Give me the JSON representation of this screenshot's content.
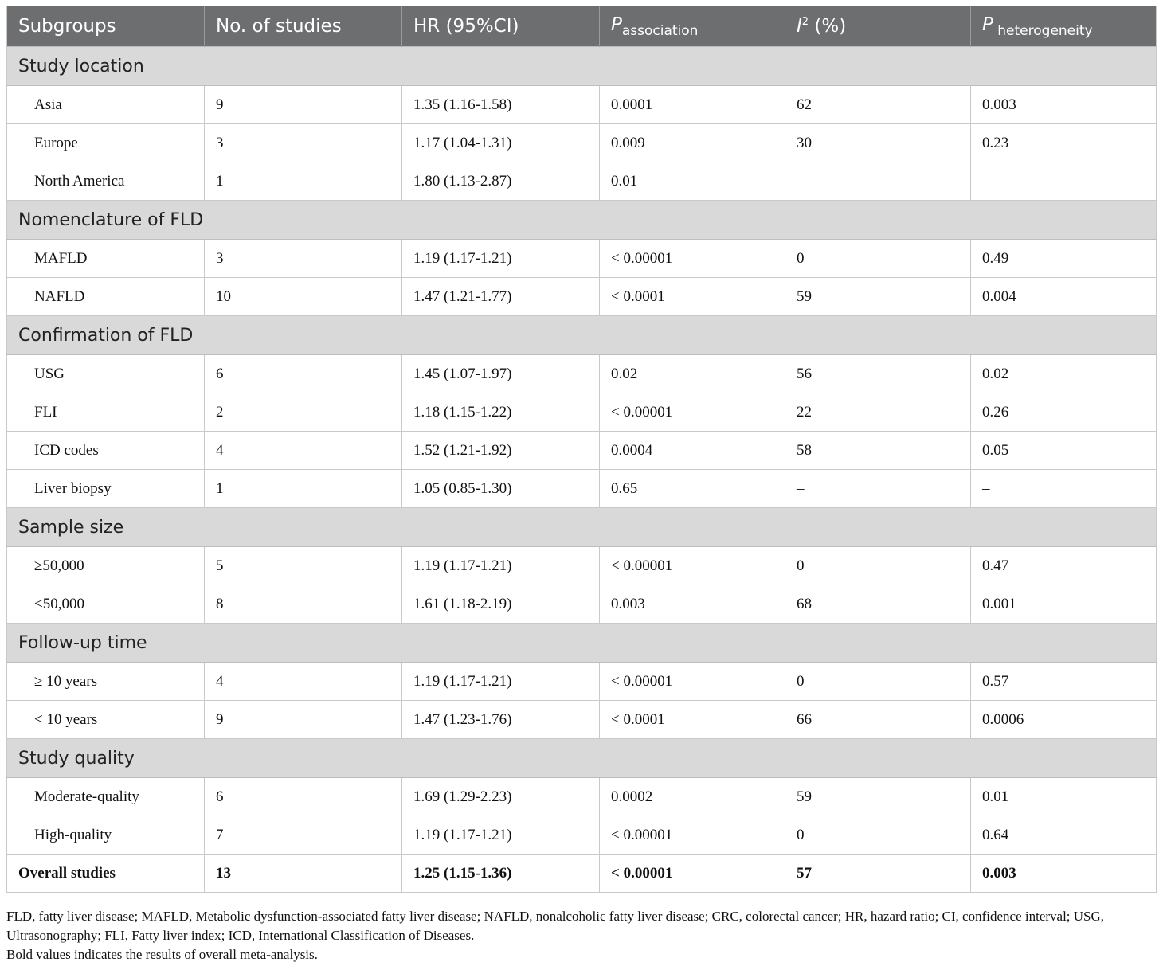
{
  "table": {
    "headers": {
      "subgroups": "Subgroups",
      "studies": "No. of studies",
      "hr": "HR (95%CI)",
      "p_assoc_main": "P",
      "p_assoc_sub": "association",
      "i2_main": "I",
      "i2_sup": "2",
      "i2_unit": " (%)",
      "p_het_main": "P",
      "p_het_sub": " heterogeneity"
    },
    "sections": [
      {
        "title": "Study location",
        "rows": [
          {
            "label": "Asia",
            "studies": "9",
            "hr": "1.35 (1.16-1.58)",
            "p": "0.0001",
            "i2": "62",
            "phet": "0.003"
          },
          {
            "label": "Europe",
            "studies": "3",
            "hr": "1.17 (1.04-1.31)",
            "p": "0.009",
            "i2": "30",
            "phet": "0.23"
          },
          {
            "label": "North America",
            "studies": "1",
            "hr": "1.80 (1.13-2.87)",
            "p": "0.01",
            "i2": "–",
            "phet": "–"
          }
        ]
      },
      {
        "title": "Nomenclature of FLD",
        "rows": [
          {
            "label": "MAFLD",
            "studies": "3",
            "hr": "1.19 (1.17-1.21)",
            "p": "< 0.00001",
            "i2": "0",
            "phet": "0.49"
          },
          {
            "label": "NAFLD",
            "studies": "10",
            "hr": "1.47 (1.21-1.77)",
            "p": "< 0.0001",
            "i2": "59",
            "phet": "0.004"
          }
        ]
      },
      {
        "title": "Confirmation of FLD",
        "rows": [
          {
            "label": "USG",
            "studies": "6",
            "hr": "1.45 (1.07-1.97)",
            "p": "0.02",
            "i2": "56",
            "phet": "0.02"
          },
          {
            "label": "FLI",
            "studies": "2",
            "hr": "1.18 (1.15-1.22)",
            "p": "< 0.00001",
            "i2": "22",
            "phet": "0.26"
          },
          {
            "label": "ICD codes",
            "studies": "4",
            "hr": "1.52 (1.21-1.92)",
            "p": "0.0004",
            "i2": "58",
            "phet": "0.05"
          },
          {
            "label": "Liver biopsy",
            "studies": "1",
            "hr": "1.05 (0.85-1.30)",
            "p": "0.65",
            "i2": "–",
            "phet": "–"
          }
        ]
      },
      {
        "title": "Sample size",
        "rows": [
          {
            "label": "≥50,000",
            "studies": "5",
            "hr": "1.19 (1.17-1.21)",
            "p": "< 0.00001",
            "i2": "0",
            "phet": "0.47"
          },
          {
            "label": "<50,000",
            "studies": "8",
            "hr": "1.61 (1.18-2.19)",
            "p": "0.003",
            "i2": "68",
            "phet": "0.001"
          }
        ]
      },
      {
        "title": "Follow-up time",
        "rows": [
          {
            "label": "≥ 10 years",
            "studies": "4",
            "hr": "1.19 (1.17-1.21)",
            "p": "< 0.00001",
            "i2": "0",
            "phet": "0.57"
          },
          {
            "label": "< 10 years",
            "studies": "9",
            "hr": "1.47 (1.23-1.76)",
            "p": "< 0.0001",
            "i2": "66",
            "phet": "0.0006"
          }
        ]
      },
      {
        "title": "Study quality",
        "rows": [
          {
            "label": "Moderate-quality",
            "studies": "6",
            "hr": "1.69 (1.29-2.23)",
            "p": "0.0002",
            "i2": "59",
            "phet": "0.01"
          },
          {
            "label": "High-quality",
            "studies": "7",
            "hr": "1.19 (1.17-1.21)",
            "p": "< 0.00001",
            "i2": "0",
            "phet": "0.64"
          }
        ]
      }
    ],
    "overall": {
      "label": "Overall studies",
      "studies": "13",
      "hr": "1.25 (1.15-1.36)",
      "p": "< 0.00001",
      "i2": "57",
      "phet": "0.003"
    }
  },
  "footnotes": {
    "abbrev": "FLD, fatty liver disease; MAFLD, Metabolic dysfunction-associated fatty liver disease; NAFLD, nonalcoholic fatty liver disease; CRC, colorectal cancer; HR, hazard ratio; CI, confidence interval; USG, Ultrasonography; FLI, Fatty liver index; ICD, International Classification of Diseases.",
    "bold_note": "Bold values indicates the results of overall meta-analysis."
  }
}
